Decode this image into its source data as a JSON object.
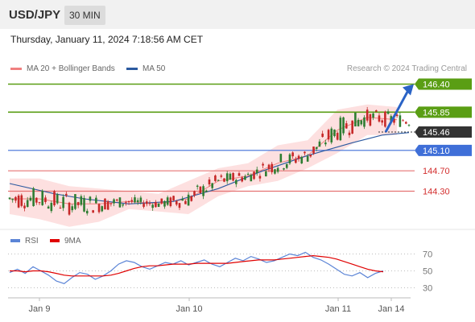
{
  "header": {
    "symbol": "USD/JPY",
    "timeframe": "30 MIN"
  },
  "datetime": "Thursday, January 11, 2024 7:18:56 AM CET",
  "legend": {
    "bollinger_label": "MA 20 + Bollinger Bands",
    "ma50_label": "MA 50",
    "rsi_label": "RSI",
    "rsi_ma_label": "9MA",
    "credit": "Research © 2024 Trading Central"
  },
  "colors": {
    "bollinger": "#f08080",
    "ma50": "#2c5aa0",
    "up": "#2e7d32",
    "down": "#c62828",
    "resistance": "#5a9e14",
    "pivot": "#3f6fd8",
    "support": "#e57373",
    "rsi": "#5b84d6",
    "rsi_ma": "#e00000",
    "current": "#333333"
  },
  "chart_data": [
    {
      "type": "candlestick",
      "title": "",
      "x_ticks": [
        "Jan 9",
        "Jan 10",
        "Jan 11",
        "Jan 14"
      ],
      "ylim": [
        143.55,
        146.55
      ],
      "grid": false,
      "legend_position": "top-left",
      "levels": [
        {
          "label": "146.40",
          "value": 146.4,
          "kind": "resistance"
        },
        {
          "label": "145.85",
          "value": 145.85,
          "kind": "resistance"
        },
        {
          "label": "145.46",
          "value": 145.46,
          "kind": "current"
        },
        {
          "label": "145.10",
          "value": 145.1,
          "kind": "pivot"
        },
        {
          "label": "144.70",
          "value": 144.7,
          "kind": "support"
        },
        {
          "label": "144.30",
          "value": 144.3,
          "kind": "support"
        }
      ],
      "forecast_arrow": {
        "from": 145.46,
        "to": 146.4,
        "direction": "up"
      },
      "ma20_bollinger": [
        {
          "i": 0,
          "mid": 144.15,
          "up": 144.55,
          "lo": 143.85
        },
        {
          "i": 10,
          "mid": 144.15,
          "up": 144.55,
          "lo": 143.75
        },
        {
          "i": 20,
          "mid": 144.05,
          "up": 144.4,
          "lo": 143.6
        },
        {
          "i": 30,
          "mid": 144.05,
          "up": 144.35,
          "lo": 143.7
        },
        {
          "i": 40,
          "mid": 144.1,
          "up": 144.3,
          "lo": 143.95
        },
        {
          "i": 50,
          "mid": 144.05,
          "up": 144.25,
          "lo": 143.9
        },
        {
          "i": 60,
          "mid": 144.15,
          "up": 144.5,
          "lo": 143.85
        },
        {
          "i": 70,
          "mid": 144.5,
          "up": 144.75,
          "lo": 144.2
        },
        {
          "i": 80,
          "mid": 144.6,
          "up": 144.85,
          "lo": 144.4
        },
        {
          "i": 90,
          "mid": 144.85,
          "up": 145.2,
          "lo": 144.5
        },
        {
          "i": 100,
          "mid": 145.0,
          "up": 145.3,
          "lo": 144.75
        },
        {
          "i": 110,
          "mid": 145.5,
          "up": 145.9,
          "lo": 145.05
        },
        {
          "i": 120,
          "mid": 145.75,
          "up": 146.0,
          "lo": 145.4
        },
        {
          "i": 130,
          "mid": 145.7,
          "up": 145.95,
          "lo": 145.4
        }
      ],
      "ma50": [
        {
          "i": 0,
          "v": 144.45
        },
        {
          "i": 15,
          "v": 144.25
        },
        {
          "i": 25,
          "v": 144.15
        },
        {
          "i": 40,
          "v": 144.05
        },
        {
          "i": 55,
          "v": 144.1
        },
        {
          "i": 70,
          "v": 144.35
        },
        {
          "i": 85,
          "v": 144.7
        },
        {
          "i": 100,
          "v": 145.0
        },
        {
          "i": 115,
          "v": 145.25
        },
        {
          "i": 125,
          "v": 145.4
        },
        {
          "i": 134,
          "v": 145.45
        }
      ]
    },
    {
      "type": "line",
      "title": "",
      "ylim": [
        20,
        80
      ],
      "y_ticks": [
        30,
        50,
        70
      ],
      "series": [
        {
          "name": "RSI",
          "color": "#5b84d6",
          "values": [
            48,
            52,
            47,
            55,
            50,
            45,
            38,
            35,
            42,
            48,
            46,
            40,
            44,
            50,
            58,
            62,
            60,
            55,
            52,
            56,
            60,
            58,
            62,
            57,
            60,
            63,
            58,
            55,
            60,
            65,
            62,
            67,
            64,
            60,
            62,
            66,
            70,
            68,
            72,
            66,
            63,
            58,
            52,
            46,
            44,
            48,
            42,
            47,
            50
          ]
        },
        {
          "name": "9MA",
          "color": "#e00000",
          "values": [
            50,
            50,
            49,
            50,
            50,
            49,
            47,
            45,
            44,
            44,
            44,
            44,
            44,
            45,
            47,
            50,
            53,
            55,
            56,
            56,
            57,
            58,
            58,
            58,
            59,
            59,
            59,
            59,
            59,
            60,
            61,
            62,
            63,
            63,
            63,
            64,
            65,
            66,
            67,
            68,
            67,
            66,
            64,
            61,
            58,
            55,
            52,
            50,
            49
          ]
        }
      ]
    }
  ]
}
